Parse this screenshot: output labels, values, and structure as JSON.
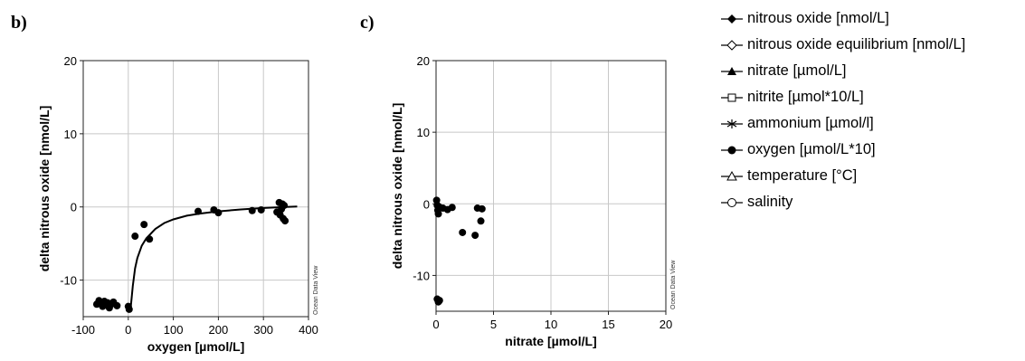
{
  "chart_data": [
    {
      "panel": "b)",
      "type": "scatter",
      "xlabel": "oxygen [µmol/L]",
      "ylabel": "delta nitrous oxide [nmol/L]",
      "xlim": [
        -100,
        400
      ],
      "ylim": [
        -15,
        20
      ],
      "xticks": [
        -100,
        0,
        100,
        200,
        300,
        400
      ],
      "yticks": [
        -10,
        0,
        10,
        20
      ],
      "grid": true,
      "watermark": "Ocean Data View",
      "points": [
        {
          "x": -70,
          "y": -13.3
        },
        {
          "x": -65,
          "y": -12.8
        },
        {
          "x": -60,
          "y": -13.2
        },
        {
          "x": -57,
          "y": -13.6
        },
        {
          "x": -53,
          "y": -12.9
        },
        {
          "x": -50,
          "y": -13.4
        },
        {
          "x": -46,
          "y": -13.1
        },
        {
          "x": -42,
          "y": -13.8
        },
        {
          "x": -38,
          "y": -13.3
        },
        {
          "x": -33,
          "y": -13.0
        },
        {
          "x": -25,
          "y": -13.5
        },
        {
          "x": 0,
          "y": -13.6
        },
        {
          "x": 2,
          "y": -14.0
        },
        {
          "x": 15,
          "y": -4.0
        },
        {
          "x": 35,
          "y": -2.4
        },
        {
          "x": 47,
          "y": -4.4
        },
        {
          "x": 155,
          "y": -0.6
        },
        {
          "x": 190,
          "y": -0.4
        },
        {
          "x": 200,
          "y": -0.8
        },
        {
          "x": 275,
          "y": -0.5
        },
        {
          "x": 295,
          "y": -0.4
        },
        {
          "x": 330,
          "y": -0.7
        },
        {
          "x": 335,
          "y": 0.6
        },
        {
          "x": 337,
          "y": -1.1
        },
        {
          "x": 340,
          "y": -0.3
        },
        {
          "x": 342,
          "y": 0.4
        },
        {
          "x": 344,
          "y": -1.6
        },
        {
          "x": 346,
          "y": 0.2
        },
        {
          "x": 348,
          "y": -1.9
        }
      ],
      "curve": [
        {
          "x": 5,
          "y": -14.0
        },
        {
          "x": 10,
          "y": -10.8
        },
        {
          "x": 15,
          "y": -8.4
        },
        {
          "x": 20,
          "y": -7.0
        },
        {
          "x": 30,
          "y": -5.3
        },
        {
          "x": 40,
          "y": -4.3
        },
        {
          "x": 60,
          "y": -3.0
        },
        {
          "x": 80,
          "y": -2.2
        },
        {
          "x": 100,
          "y": -1.7
        },
        {
          "x": 130,
          "y": -1.2
        },
        {
          "x": 160,
          "y": -0.9
        },
        {
          "x": 200,
          "y": -0.6
        },
        {
          "x": 250,
          "y": -0.35
        },
        {
          "x": 300,
          "y": -0.15
        },
        {
          "x": 350,
          "y": 0.0
        },
        {
          "x": 375,
          "y": 0.05
        }
      ]
    },
    {
      "panel": "c)",
      "type": "scatter",
      "xlabel": "nitrate [µmol/L]",
      "ylabel": "delta nitrous oxide [nmol/L]",
      "xlim": [
        0,
        20
      ],
      "ylim": [
        -15,
        20
      ],
      "xticks": [
        0,
        5,
        10,
        15,
        20
      ],
      "yticks": [
        -10,
        0,
        10,
        20
      ],
      "grid": true,
      "watermark": "Ocean Data View",
      "points": [
        {
          "x": 0.05,
          "y": 0.5
        },
        {
          "x": 0.1,
          "y": -0.2
        },
        {
          "x": 0.15,
          "y": -0.9
        },
        {
          "x": 0.2,
          "y": -1.4
        },
        {
          "x": 0.25,
          "y": -0.4
        },
        {
          "x": 0.6,
          "y": -0.6
        },
        {
          "x": 1.0,
          "y": -0.8
        },
        {
          "x": 1.4,
          "y": -0.5
        },
        {
          "x": 2.3,
          "y": -4.0
        },
        {
          "x": 3.4,
          "y": -4.4
        },
        {
          "x": 3.6,
          "y": -0.6
        },
        {
          "x": 3.9,
          "y": -2.4
        },
        {
          "x": 4.0,
          "y": -0.7
        },
        {
          "x": 0.1,
          "y": -13.3
        },
        {
          "x": 0.2,
          "y": -13.7
        },
        {
          "x": 0.3,
          "y": -13.5
        }
      ]
    }
  ],
  "legend": [
    {
      "label": "nitrous oxide [nmol/L]",
      "marker": "diamond-filled"
    },
    {
      "label": "nitrous oxide equilibrium [nmol/L]",
      "marker": "diamond-open"
    },
    {
      "label": "nitrate [µmol/L]",
      "marker": "triangle-filled"
    },
    {
      "label": "nitrite [µmol*10/L]",
      "marker": "square-open"
    },
    {
      "label": "ammonium [µmol/l]",
      "marker": "asterisk"
    },
    {
      "label": "oxygen [µmol/L*10]",
      "marker": "circle-filled"
    },
    {
      "label": "temperature [°C]",
      "marker": "triangle-open"
    },
    {
      "label": "salinity",
      "marker": "circle-open"
    }
  ]
}
